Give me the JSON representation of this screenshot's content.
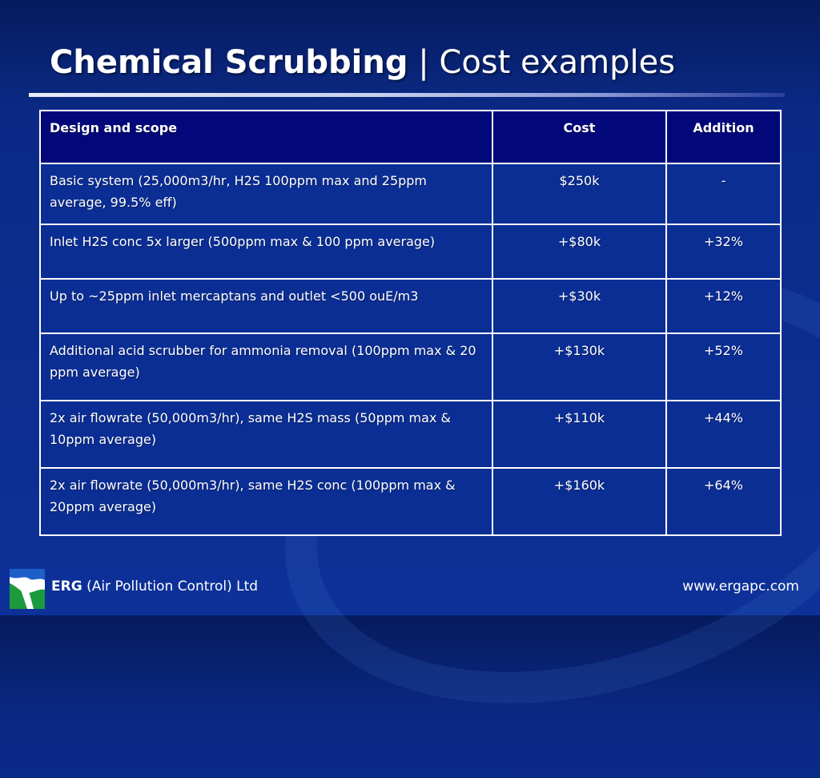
{
  "title": {
    "main": "Chemical Scrubbing",
    "separator": " | ",
    "sub": "Cost examples"
  },
  "table": {
    "headers": [
      "Design and scope",
      "Cost",
      "Addition"
    ],
    "rows": [
      [
        "Basic system (25,000m3/hr, H2S 100ppm max and 25ppm average, 99.5% eff)",
        "$250k",
        "-"
      ],
      [
        "Inlet H2S conc 5x larger  (500ppm max & 100 ppm average)",
        "+$80k",
        "+32%"
      ],
      [
        "Up to ~25ppm inlet mercaptans and outlet <500 ouE/m3",
        "+$30k",
        "+12%"
      ],
      [
        "Additional acid scrubber for ammonia removal (100ppm max & 20 ppm average)",
        "+$130k",
        "+52%"
      ],
      [
        "2x air flowrate (50,000m3/hr), same H2S mass (50ppm max & 10ppm average)",
        "+$110k",
        "+44%"
      ],
      [
        "2x air flowrate (50,000m3/hr), same H2S conc (100ppm max & 20ppm average)",
        "+$160k",
        "+64%"
      ]
    ]
  },
  "footer": {
    "company_bold": "ERG",
    "company_rest": " (Air Pollution Control) Ltd",
    "url": "www.ergapc.com",
    "logo_icon": "erg-logo-icon"
  },
  "colors": {
    "background": "#0b2a86",
    "header_cell": "#02087a",
    "body_cell": "#0b2e94",
    "text": "#ffffff"
  }
}
